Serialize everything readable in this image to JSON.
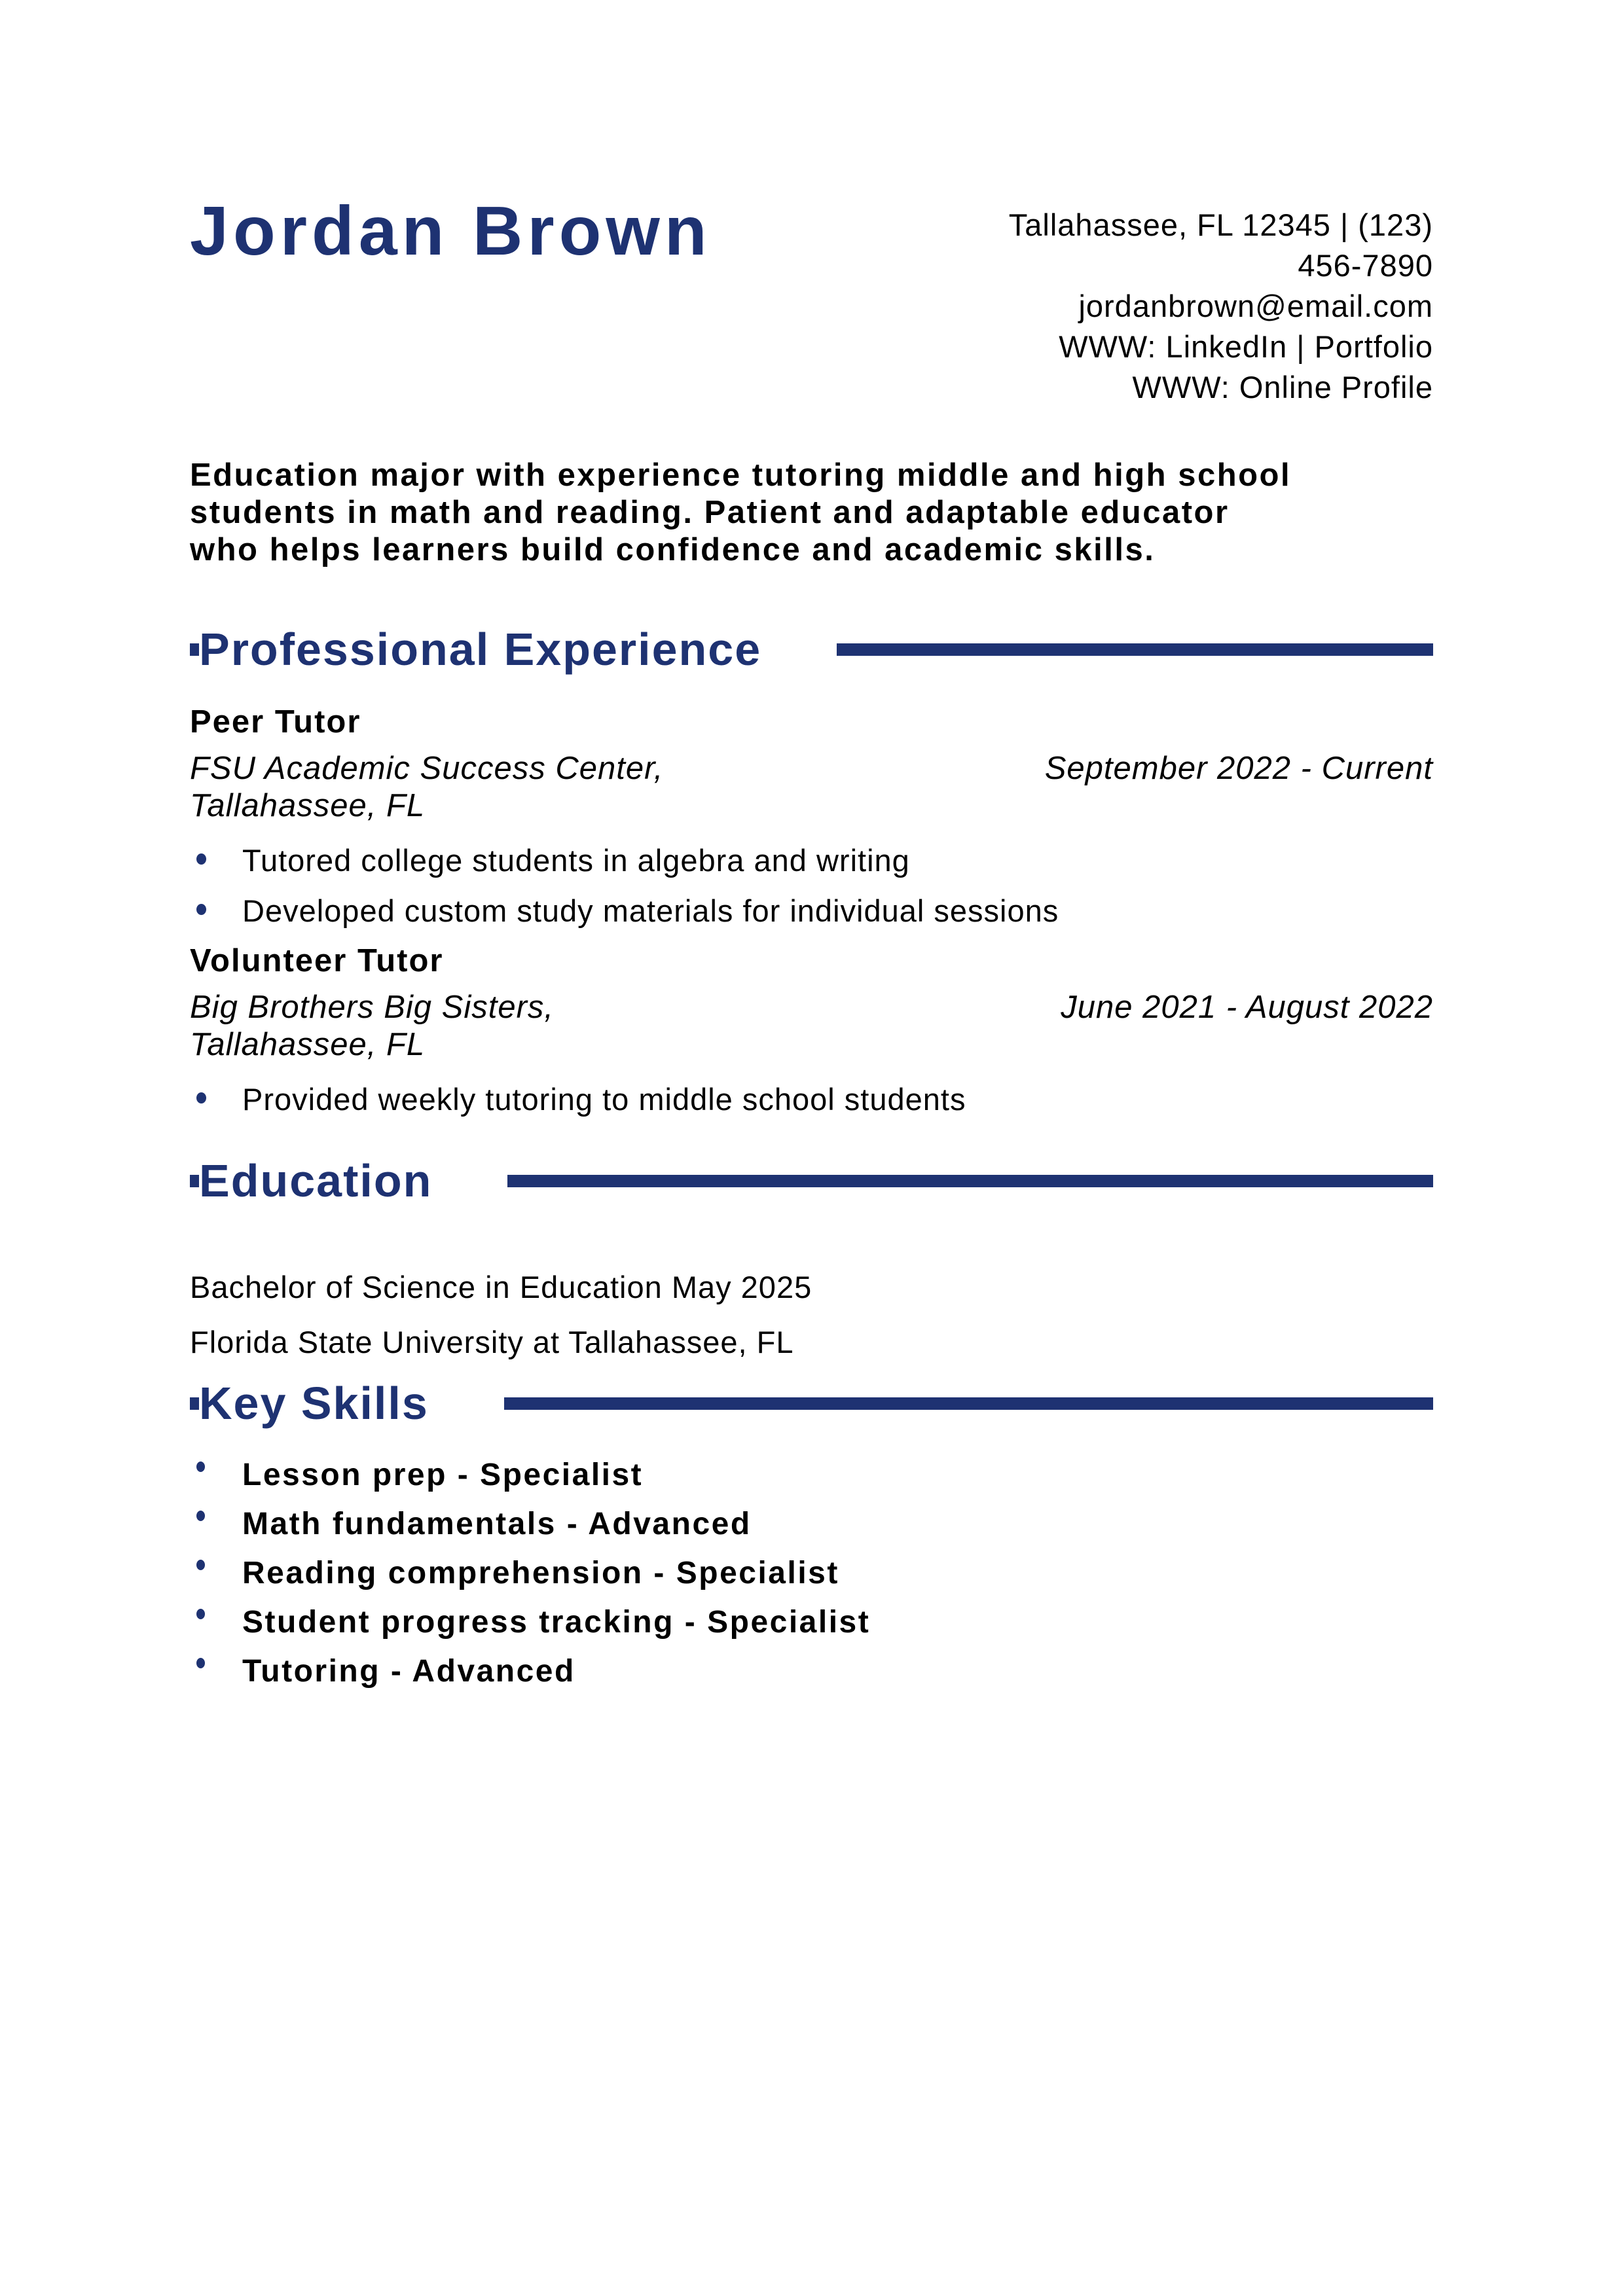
{
  "header": {
    "name": "Jordan Brown",
    "contact_lines": [
      "Tallahassee, FL 12345 | (123)",
      "456-7890",
      "jordanbrown@email.com",
      "WWW: LinkedIn | Portfolio",
      "WWW: Online Profile"
    ]
  },
  "summary": "Education major with experience tutoring middle and high school\nstudents in math and reading. Patient and adaptable educator\nwho helps learners build confidence and academic skills.",
  "experience": {
    "heading": "Professional Experience",
    "jobs": [
      {
        "title": "Peer Tutor",
        "company": "FSU Academic Success Center,\nTallahassee, FL",
        "dates": "September 2022 - Current",
        "bullets": [
          "Tutored college students in algebra and writing",
          "Developed custom study materials for individual sessions"
        ]
      },
      {
        "title": "Volunteer Tutor",
        "company": "Big Brothers Big Sisters,\nTallahassee, FL",
        "dates": "June 2021 - August 2022",
        "bullets": [
          "Provided weekly tutoring to middle school students"
        ]
      }
    ]
  },
  "education": {
    "heading": "Education",
    "degree": "Bachelor of Science in Education May 2025",
    "school": "Florida State University at Tallahassee, FL"
  },
  "skills": {
    "heading": "Key Skills",
    "items": [
      "Lesson prep - Specialist",
      "Math fundamentals - Advanced",
      "Reading comprehension - Specialist",
      "Student progress tracking - Specialist",
      "Tutoring - Advanced"
    ]
  },
  "colors": {
    "accent": "#1e3272",
    "text": "#000000",
    "background": "#ffffff"
  }
}
